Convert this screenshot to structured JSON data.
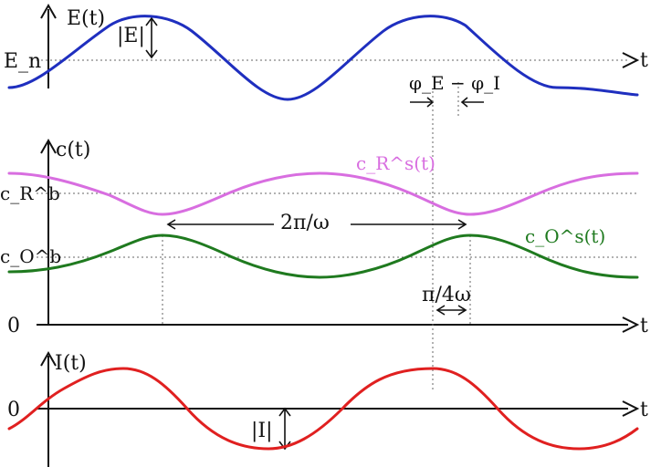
{
  "panels": {
    "top": {
      "y_label": "E(t)",
      "x_label": "t",
      "level_label": "E_n",
      "amplitude_label": "|E|",
      "phase_label": "φ_E − φ_I",
      "curve_color": "#1f2fbf"
    },
    "middle": {
      "y_label": "c(t)",
      "x_label": "t",
      "zero_label": "0",
      "level_r_label": "c_R^b",
      "level_o_label": "c_O^b",
      "curve_r_label": "c_R^s(t)",
      "curve_o_label": "c_O^s(t)",
      "period_label": "2π/ω",
      "quarter_label": "π/4ω",
      "curve_r_color": "#d86ee0",
      "curve_o_color": "#1f7a1f"
    },
    "bottom": {
      "y_label": "I(t)",
      "x_label": "t",
      "zero_label": "0",
      "amplitude_label": "|I|",
      "curve_color": "#e02020"
    }
  }
}
